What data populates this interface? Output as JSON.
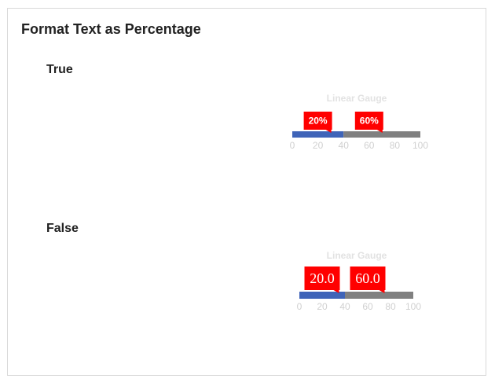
{
  "page": {
    "title": "Format Text as Percentage"
  },
  "colors": {
    "band_blue": "#3f64b8",
    "band_gray": "#808080",
    "pointer_red": "#ff0000"
  },
  "sections": [
    {
      "label": "True",
      "gauge_title": "Linear Gauge",
      "ticks": [
        "0",
        "20",
        "40",
        "60",
        "80",
        "100"
      ],
      "pointers": [
        {
          "value": 20,
          "text": "20%"
        },
        {
          "value": 60,
          "text": "60%"
        }
      ]
    },
    {
      "label": "False",
      "gauge_title": "Linear Gauge",
      "ticks": [
        "0",
        "20",
        "40",
        "60",
        "80",
        "100"
      ],
      "pointers": [
        {
          "value": 20,
          "text": "20.0"
        },
        {
          "value": 60,
          "text": "60.0"
        }
      ]
    }
  ],
  "chart_data": [
    {
      "type": "linear-gauge",
      "title": "Linear Gauge",
      "range": [
        0,
        100
      ],
      "ticks": [
        0,
        20,
        40,
        60,
        80,
        100
      ],
      "bands": [
        {
          "from": 0,
          "to": 40,
          "color": "#3f64b8"
        },
        {
          "from": 40,
          "to": 100,
          "color": "#808080"
        }
      ],
      "pointers": [
        {
          "value": 20,
          "label": "20%"
        },
        {
          "value": 60,
          "label": "60%"
        }
      ]
    },
    {
      "type": "linear-gauge",
      "title": "Linear Gauge",
      "range": [
        0,
        100
      ],
      "ticks": [
        0,
        20,
        40,
        60,
        80,
        100
      ],
      "bands": [
        {
          "from": 0,
          "to": 40,
          "color": "#3f64b8"
        },
        {
          "from": 40,
          "to": 100,
          "color": "#808080"
        }
      ],
      "pointers": [
        {
          "value": 20,
          "label": "20.0"
        },
        {
          "value": 60,
          "label": "60.0"
        }
      ]
    }
  ]
}
